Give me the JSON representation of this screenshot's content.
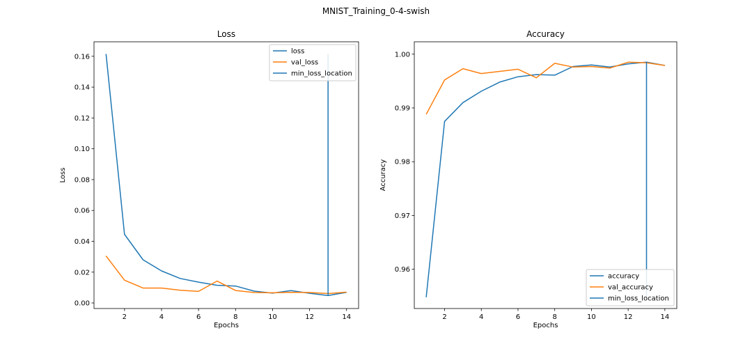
{
  "figure": {
    "title": "MNIST_Training_0-4-swish"
  },
  "colors": {
    "blue": "#1f77b4",
    "orange": "#ff7f0e"
  },
  "chart_data": [
    {
      "type": "line",
      "title": "Loss",
      "xlabel": "Epochs",
      "ylabel": "Loss",
      "xlim": [
        0.35,
        14.65
      ],
      "ylim": [
        -0.0036,
        0.1694
      ],
      "xticks": [
        2,
        4,
        6,
        8,
        10,
        12,
        14
      ],
      "yticks": [
        0.0,
        0.02,
        0.04,
        0.06,
        0.08,
        0.1,
        0.12,
        0.14,
        0.16
      ],
      "ytick_labels": [
        "0.00",
        "0.02",
        "0.04",
        "0.06",
        "0.08",
        "0.10",
        "0.12",
        "0.14",
        "0.16"
      ],
      "legend_position": "top-right",
      "x": [
        1,
        2,
        3,
        4,
        5,
        6,
        7,
        8,
        9,
        10,
        11,
        12,
        13,
        14
      ],
      "series": [
        {
          "name": "loss",
          "color": "#1f77b4",
          "values": [
            0.1615,
            0.0445,
            0.028,
            0.0208,
            0.0159,
            0.0135,
            0.0115,
            0.011,
            0.0077,
            0.0064,
            0.008,
            0.0063,
            0.0048,
            0.0069
          ]
        },
        {
          "name": "val_loss",
          "color": "#ff7f0e",
          "values": [
            0.0305,
            0.0148,
            0.0097,
            0.0097,
            0.0083,
            0.0075,
            0.0142,
            0.0081,
            0.0068,
            0.0066,
            0.0069,
            0.0068,
            0.0061,
            0.007
          ]
        }
      ],
      "vline": {
        "name": "min_loss_location",
        "color": "#1f77b4",
        "x": 13,
        "y_from": 0.0048,
        "y_to": 0.1615
      }
    },
    {
      "type": "line",
      "title": "Accuracy",
      "xlabel": "Epochs",
      "ylabel": "Accuracy",
      "xlim": [
        0.35,
        14.65
      ],
      "ylim": [
        0.9527,
        1.0023
      ],
      "xticks": [
        2,
        4,
        6,
        8,
        10,
        12,
        14
      ],
      "yticks": [
        0.96,
        0.97,
        0.98,
        0.99,
        1.0
      ],
      "ytick_labels": [
        "0.96",
        "0.97",
        "0.98",
        "0.99",
        "1.00"
      ],
      "legend_position": "bottom-right",
      "x": [
        1,
        2,
        3,
        4,
        5,
        6,
        7,
        8,
        9,
        10,
        11,
        12,
        13,
        14
      ],
      "series": [
        {
          "name": "accuracy",
          "color": "#1f77b4",
          "values": [
            0.9548,
            0.9875,
            0.991,
            0.9931,
            0.9948,
            0.9958,
            0.9962,
            0.9961,
            0.9977,
            0.998,
            0.9976,
            0.9982,
            0.9985,
            0.9979
          ]
        },
        {
          "name": "val_accuracy",
          "color": "#ff7f0e",
          "values": [
            0.9888,
            0.9952,
            0.9973,
            0.9964,
            0.9968,
            0.9972,
            0.9956,
            0.9983,
            0.9976,
            0.9977,
            0.9974,
            0.9985,
            0.9984,
            0.9979
          ]
        }
      ],
      "vline": {
        "name": "min_loss_location",
        "color": "#1f77b4",
        "x": 13,
        "y_from": 0.9548,
        "y_to": 0.9985
      }
    }
  ]
}
